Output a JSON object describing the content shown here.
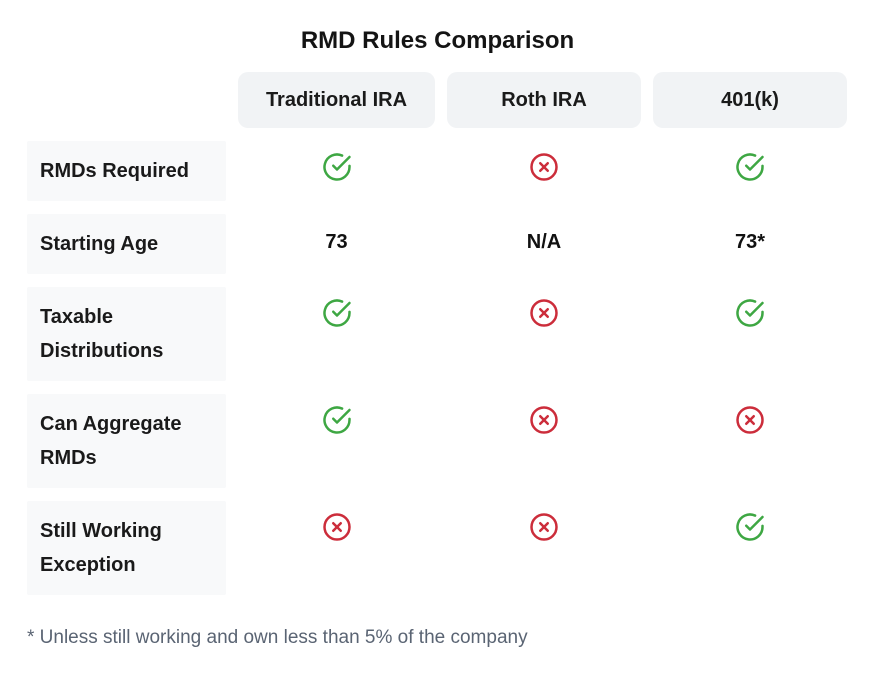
{
  "chart_data": {
    "type": "table",
    "title": "RMD Rules Comparison",
    "columns": [
      "Traditional IRA",
      "Roth IRA",
      "401(k)"
    ],
    "rows": [
      {
        "label": "RMDs Required",
        "values": [
          "check",
          "x",
          "check"
        ]
      },
      {
        "label": "Starting Age",
        "values": [
          "73",
          "N/A",
          "73*"
        ]
      },
      {
        "label": "Taxable Distributions",
        "values": [
          "check",
          "x",
          "check"
        ]
      },
      {
        "label": "Can Aggregate RMDs",
        "values": [
          "check",
          "x",
          "x"
        ]
      },
      {
        "label": "Still Working Exception",
        "values": [
          "x",
          "x",
          "check"
        ]
      }
    ],
    "footnote": "* Unless still working and own less than 5% of the company",
    "icons": {
      "check": "check-circle-icon",
      "x": "x-circle-icon"
    },
    "colors": {
      "check_green": "#3ea743",
      "x_red": "#cc2d3b",
      "header_bg": "#f1f3f5",
      "row_label_bg": "#f8f9fa",
      "text": "#161616",
      "footnote_gray": "#5a6473"
    }
  }
}
